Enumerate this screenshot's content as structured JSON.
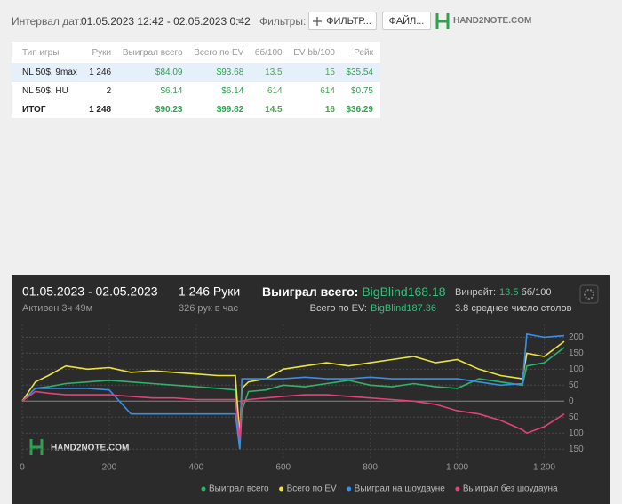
{
  "toolbar": {
    "date_label": "Интервал дат:",
    "date_range": "01.05.2023 12:42 - 02.05.2023 0:42",
    "filters_label": "Фильтры:",
    "filter_button": "ФИЛЬТР...",
    "file_button": "ФАЙЛ...",
    "logo": "HAND2NOTE.COM"
  },
  "table": {
    "columns": [
      "Тип игры",
      "Руки",
      "Выиграл всего",
      "Всего по EV",
      "бб/100",
      "EV bb/100",
      "Рейк"
    ],
    "rows": [
      [
        "NL 50$, 9max",
        "1 246",
        "$84.09",
        "$93.68",
        "13.5",
        "15",
        "$35.54"
      ],
      [
        "NL 50$, HU",
        "2",
        "$6.14",
        "$6.14",
        "614",
        "614",
        "$0.75"
      ],
      [
        "ИТОГ",
        "1 248",
        "$90.23",
        "$99.82",
        "14.5",
        "16",
        "$36.29"
      ]
    ]
  },
  "summary": {
    "period": "01.05.2023 - 02.05.2023",
    "active": "Активен 3ч 49м",
    "hands": "1 246 Руки",
    "rate": "326 рук в час",
    "won_label": "Выиграл всего:",
    "won_value": "BigBlind168.18",
    "ev_label": "Всего по EV:",
    "ev_value": "BigBlind187.36",
    "winrate_label": "Винрейт:",
    "winrate_value": "13.5",
    "winrate_unit": "бб/100",
    "tables": "3.8 среднее число столов",
    "watermark": "HAND2NOTE.COM"
  },
  "chart_data": {
    "type": "line",
    "x": [
      0,
      30,
      60,
      100,
      150,
      200,
      250,
      300,
      350,
      400,
      450,
      490,
      500,
      505,
      520,
      560,
      600,
      650,
      700,
      750,
      800,
      850,
      900,
      950,
      1000,
      1050,
      1100,
      1150,
      1160,
      1200,
      1246
    ],
    "series": [
      {
        "name": "Выиграл всего",
        "color": "#2fb36a",
        "values": [
          0,
          40,
          45,
          55,
          60,
          65,
          60,
          55,
          50,
          45,
          40,
          35,
          -150,
          -30,
          30,
          35,
          50,
          45,
          55,
          65,
          50,
          45,
          55,
          45,
          40,
          70,
          60,
          50,
          110,
          120,
          168
        ]
      },
      {
        "name": "Всего по EV",
        "color": "#ece33e",
        "values": [
          0,
          60,
          80,
          110,
          100,
          105,
          90,
          95,
          90,
          85,
          80,
          80,
          -110,
          40,
          60,
          70,
          100,
          110,
          120,
          110,
          120,
          130,
          140,
          120,
          130,
          100,
          80,
          70,
          150,
          140,
          187
        ]
      },
      {
        "name": "Выиграл на шоудауне",
        "color": "#3a8ee6",
        "values": [
          0,
          40,
          40,
          40,
          40,
          35,
          -40,
          -40,
          -40,
          -40,
          -40,
          -40,
          -150,
          70,
          70,
          70,
          70,
          75,
          70,
          70,
          75,
          70,
          70,
          70,
          70,
          60,
          50,
          55,
          210,
          200,
          205
        ]
      },
      {
        "name": "Выиграл без шоудауна",
        "color": "#e2417c",
        "values": [
          0,
          30,
          25,
          20,
          20,
          20,
          15,
          10,
          10,
          5,
          5,
          5,
          -120,
          0,
          5,
          10,
          15,
          20,
          20,
          15,
          10,
          5,
          0,
          -10,
          -30,
          -40,
          -60,
          -90,
          -100,
          -80,
          -40
        ]
      }
    ],
    "xlim": [
      0,
      1246
    ],
    "ylim": [
      -180,
      240
    ],
    "xticks": [
      0,
      200,
      400,
      600,
      800,
      {
        "value": 1000,
        "label": "1 000"
      },
      {
        "value": 1200,
        "label": "1 200"
      }
    ],
    "yticks": [
      {
        "value": -150,
        "label": "150"
      },
      {
        "value": -100,
        "label": "100"
      },
      {
        "value": -50,
        "label": "50"
      },
      0,
      50,
      100,
      150,
      200
    ],
    "grid": true
  }
}
